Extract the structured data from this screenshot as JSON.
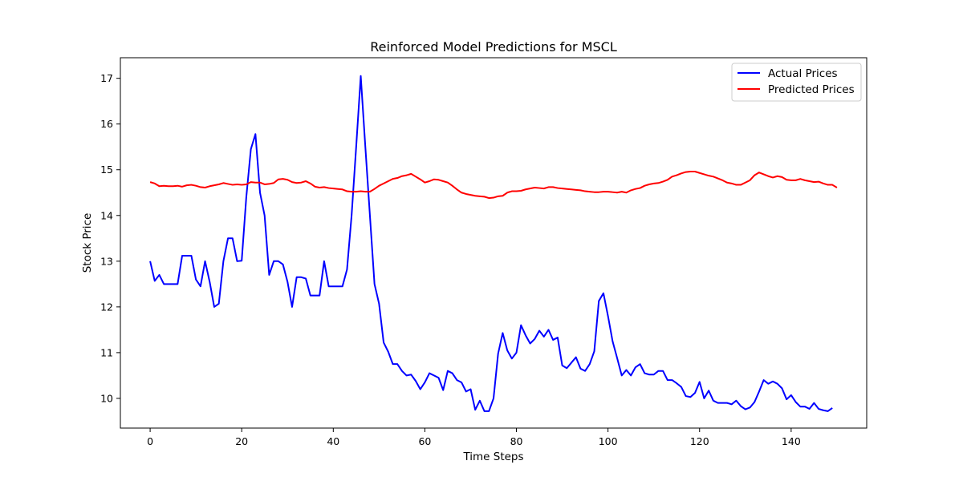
{
  "chart_data": {
    "type": "line",
    "title": "Reinforced Model Predictions for MSCL",
    "xlabel": "Time Steps",
    "ylabel": "Stock Price",
    "xlim": [
      -6.5,
      156.5
    ],
    "ylim": [
      9.35,
      17.45
    ],
    "xticks": [
      0,
      20,
      40,
      60,
      80,
      100,
      120,
      140
    ],
    "yticks": [
      10,
      11,
      12,
      13,
      14,
      15,
      16,
      17
    ],
    "grid": false,
    "legend_position": "top-right",
    "series": [
      {
        "name": "Actual Prices",
        "color": "#0000ff",
        "values": [
          13.0,
          12.57,
          12.7,
          12.5,
          12.5,
          12.5,
          12.5,
          13.12,
          13.12,
          13.12,
          12.6,
          12.45,
          13.0,
          12.55,
          12.0,
          12.07,
          13.0,
          13.5,
          13.5,
          13.0,
          13.01,
          14.4,
          15.45,
          15.78,
          14.5,
          14.0,
          12.7,
          13.0,
          13.0,
          12.93,
          12.55,
          12.0,
          12.65,
          12.65,
          12.62,
          12.25,
          12.25,
          12.25,
          13.0,
          12.45,
          12.45,
          12.45,
          12.45,
          12.82,
          14.0,
          15.5,
          17.05,
          15.5,
          14.0,
          12.5,
          12.07,
          11.22,
          11.02,
          10.75,
          10.75,
          10.6,
          10.5,
          10.52,
          10.38,
          10.2,
          10.35,
          10.55,
          10.5,
          10.45,
          10.18,
          10.6,
          10.55,
          10.4,
          10.35,
          10.15,
          10.2,
          9.75,
          9.95,
          9.72,
          9.72,
          10.0,
          10.98,
          11.43,
          11.05,
          10.87,
          11.0,
          11.6,
          11.38,
          11.2,
          11.3,
          11.48,
          11.35,
          11.5,
          11.28,
          11.33,
          10.72,
          10.66,
          10.78,
          10.9,
          10.65,
          10.6,
          10.75,
          11.03,
          12.13,
          12.3,
          11.8,
          11.25,
          10.88,
          10.5,
          10.62,
          10.5,
          10.68,
          10.75,
          10.55,
          10.52,
          10.52,
          10.6,
          10.6,
          10.4,
          10.4,
          10.33,
          10.25,
          10.05,
          10.03,
          10.12,
          10.36,
          10.0,
          10.17,
          9.95,
          9.9,
          9.9,
          9.9,
          9.87,
          9.95,
          9.83,
          9.76,
          9.8,
          9.92,
          10.15,
          10.4,
          10.32,
          10.37,
          10.32,
          10.22,
          9.98,
          10.07,
          9.92,
          9.82,
          9.82,
          9.77,
          9.9,
          9.77,
          9.74,
          9.72,
          9.79
        ]
      },
      {
        "name": "Predicted Prices",
        "color": "#ff0000",
        "values": [
          14.73,
          14.7,
          14.64,
          14.65,
          14.64,
          14.64,
          14.65,
          14.63,
          14.66,
          14.67,
          14.65,
          14.62,
          14.61,
          14.64,
          14.66,
          14.68,
          14.71,
          14.69,
          14.67,
          14.68,
          14.67,
          14.68,
          14.73,
          14.72,
          14.72,
          14.68,
          14.69,
          14.71,
          14.79,
          14.8,
          14.78,
          14.73,
          14.71,
          14.72,
          14.75,
          14.7,
          14.63,
          14.61,
          14.62,
          14.6,
          14.59,
          14.58,
          14.57,
          14.53,
          14.52,
          14.52,
          14.53,
          14.52,
          14.52,
          14.58,
          14.65,
          14.7,
          14.75,
          14.8,
          14.82,
          14.86,
          14.88,
          14.91,
          14.85,
          14.79,
          14.72,
          14.75,
          14.79,
          14.78,
          14.75,
          14.72,
          14.65,
          14.57,
          14.5,
          14.47,
          14.45,
          14.43,
          14.42,
          14.41,
          14.38,
          14.39,
          14.42,
          14.43,
          14.5,
          14.53,
          14.53,
          14.54,
          14.57,
          14.59,
          14.61,
          14.6,
          14.59,
          14.62,
          14.62,
          14.6,
          14.59,
          14.58,
          14.57,
          14.56,
          14.55,
          14.53,
          14.52,
          14.51,
          14.51,
          14.52,
          14.52,
          14.51,
          14.5,
          14.52,
          14.5,
          14.55,
          14.58,
          14.6,
          14.65,
          14.68,
          14.7,
          14.71,
          14.74,
          14.78,
          14.85,
          14.88,
          14.92,
          14.95,
          14.96,
          14.96,
          14.93,
          14.9,
          14.87,
          14.85,
          14.81,
          14.77,
          14.72,
          14.7,
          14.67,
          14.67,
          14.72,
          14.77,
          14.88,
          14.94,
          14.9,
          14.86,
          14.83,
          14.86,
          14.84,
          14.78,
          14.77,
          14.77,
          14.8,
          14.77,
          14.75,
          14.73,
          14.74,
          14.7,
          14.67,
          14.67,
          14.61
        ]
      }
    ]
  }
}
